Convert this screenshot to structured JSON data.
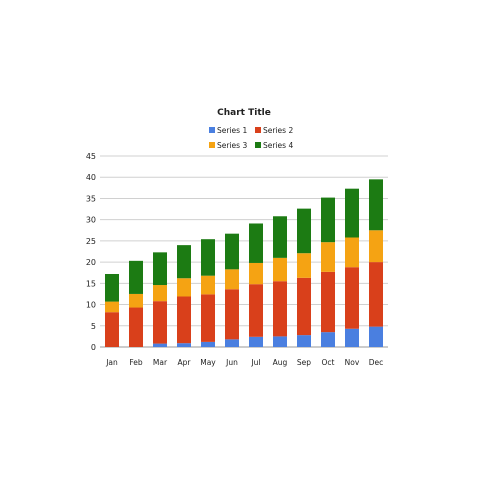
{
  "chart_data": {
    "type": "bar",
    "stacked": true,
    "title": "Chart Title",
    "categories": [
      "Jan",
      "Feb",
      "Mar",
      "Apr",
      "May",
      "Jun",
      "Jul",
      "Aug",
      "Sep",
      "Oct",
      "Nov",
      "Dec"
    ],
    "series": [
      {
        "name": "Series 1",
        "color": "#4a7fe0",
        "values": [
          0,
          0,
          0.8,
          0.9,
          1.2,
          1.8,
          2.4,
          2.5,
          2.8,
          3.5,
          4.3,
          4.8
        ]
      },
      {
        "name": "Series 2",
        "color": "#d9401b",
        "values": [
          8.2,
          9.3,
          10.0,
          11.0,
          11.2,
          11.8,
          12.4,
          13.0,
          13.5,
          14.2,
          14.5,
          15.2
        ]
      },
      {
        "name": "Series 3",
        "color": "#f5a313",
        "values": [
          2.5,
          3.2,
          3.8,
          4.3,
          4.4,
          4.7,
          5.0,
          5.5,
          5.8,
          7.0,
          7.0,
          7.5
        ]
      },
      {
        "name": "Series 4",
        "color": "#1c7b13",
        "values": [
          6.5,
          7.8,
          7.7,
          7.8,
          8.6,
          8.4,
          9.3,
          9.8,
          10.5,
          10.5,
          11.5,
          12.0
        ]
      }
    ],
    "ylim": [
      0,
      45
    ],
    "yticks": [
      0,
      5,
      10,
      15,
      20,
      25,
      30,
      35,
      40,
      45
    ],
    "grid": true,
    "legend": "top"
  }
}
